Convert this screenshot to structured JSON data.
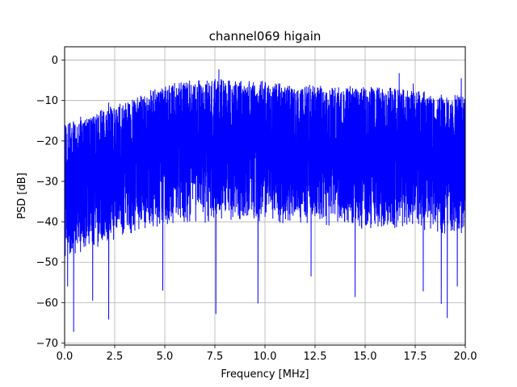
{
  "chart_data": {
    "type": "line",
    "title": "channel069 higain",
    "xlabel": "Frequency [MHz]",
    "ylabel": "PSD [dB]",
    "xlim": [
      0,
      20
    ],
    "ylim": [
      -70.5,
      3.3
    ],
    "grid": true,
    "xticks": [
      0,
      2.5,
      5,
      7.5,
      10,
      12.5,
      15,
      17.5,
      20
    ],
    "xtick_labels": [
      "0.0",
      "2.5",
      "5.0",
      "7.5",
      "10.0",
      "12.5",
      "15.0",
      "17.5",
      "20.0"
    ],
    "yticks": [
      0,
      -10,
      -20,
      -30,
      -40,
      -50,
      -60,
      -70
    ],
    "ytick_labels": [
      "0",
      "−10",
      "−20",
      "−30",
      "−40",
      "−50",
      "−60",
      "−70"
    ],
    "series": [
      {
        "color": "#0000ff",
        "upper_envelope": {
          "x": [
            0,
            0.5,
            1,
            1.5,
            2,
            2.5,
            3,
            3.5,
            4,
            4.5,
            5,
            5.5,
            6,
            6.5,
            7,
            7.5,
            8,
            8.5,
            9,
            9.5,
            10,
            10.5,
            11,
            11.5,
            12,
            12.5,
            13,
            13.5,
            14,
            14.5,
            15,
            15.5,
            16,
            16.5,
            17,
            17.5,
            18,
            18.5,
            19,
            19.5,
            20
          ],
          "y": [
            -15,
            -15,
            -14,
            -13,
            -12,
            -11,
            -10,
            -9,
            -8,
            -7,
            -6,
            -5.5,
            -5,
            -5,
            -4.5,
            -4.5,
            -4.5,
            -4.5,
            -5,
            -5,
            -5,
            -5.5,
            -5.5,
            -6,
            -6,
            -6,
            -6,
            -6,
            -6,
            -6,
            -6,
            -6.5,
            -6.5,
            -7,
            -7,
            -7,
            -7.5,
            -8,
            -8,
            -8,
            -8
          ]
        },
        "lower_envelope": {
          "x": [
            0,
            0.5,
            1,
            1.5,
            2,
            2.5,
            3,
            3.5,
            4,
            4.5,
            5,
            5.5,
            6,
            6.5,
            7,
            7.5,
            8,
            8.5,
            9,
            9.5,
            10,
            10.5,
            11,
            11.5,
            12,
            12.5,
            13,
            13.5,
            14,
            14.5,
            15,
            15.5,
            16,
            16.5,
            17,
            17.5,
            18,
            18.5,
            19,
            19.5,
            20
          ],
          "y": [
            -45,
            -45,
            -44,
            -43,
            -42,
            -41,
            -40,
            -39,
            -38,
            -38,
            -37,
            -37,
            -37,
            -37,
            -37,
            -36,
            -36,
            -36,
            -36,
            -36,
            -36,
            -36,
            -37,
            -37,
            -37,
            -37,
            -37,
            -37,
            -37,
            -38,
            -38,
            -38,
            -38,
            -38,
            -38,
            -38,
            -39,
            -39,
            -39,
            -40,
            -40
          ]
        },
        "peaks": [
          {
            "x": 7.7,
            "y": -2.3
          },
          {
            "x": 16.7,
            "y": -3.2
          },
          {
            "x": 17.4,
            "y": -5.8
          },
          {
            "x": 19.8,
            "y": -4.5
          },
          {
            "x": 2.2,
            "y": -10.5
          },
          {
            "x": 0.8,
            "y": -14
          }
        ],
        "dips": [
          {
            "x": 0.45,
            "y": -67.2
          },
          {
            "x": 0.15,
            "y": -56
          },
          {
            "x": 1.4,
            "y": -59.5
          },
          {
            "x": 2.2,
            "y": -64.2
          },
          {
            "x": 4.9,
            "y": -57
          },
          {
            "x": 7.55,
            "y": -62.8
          },
          {
            "x": 9.65,
            "y": -60.2
          },
          {
            "x": 12.3,
            "y": -53.5
          },
          {
            "x": 14.5,
            "y": -58.6
          },
          {
            "x": 17.9,
            "y": -57.2
          },
          {
            "x": 18.8,
            "y": -60.3
          },
          {
            "x": 19.1,
            "y": -63.8
          },
          {
            "x": 19.6,
            "y": -56
          }
        ]
      }
    ]
  }
}
